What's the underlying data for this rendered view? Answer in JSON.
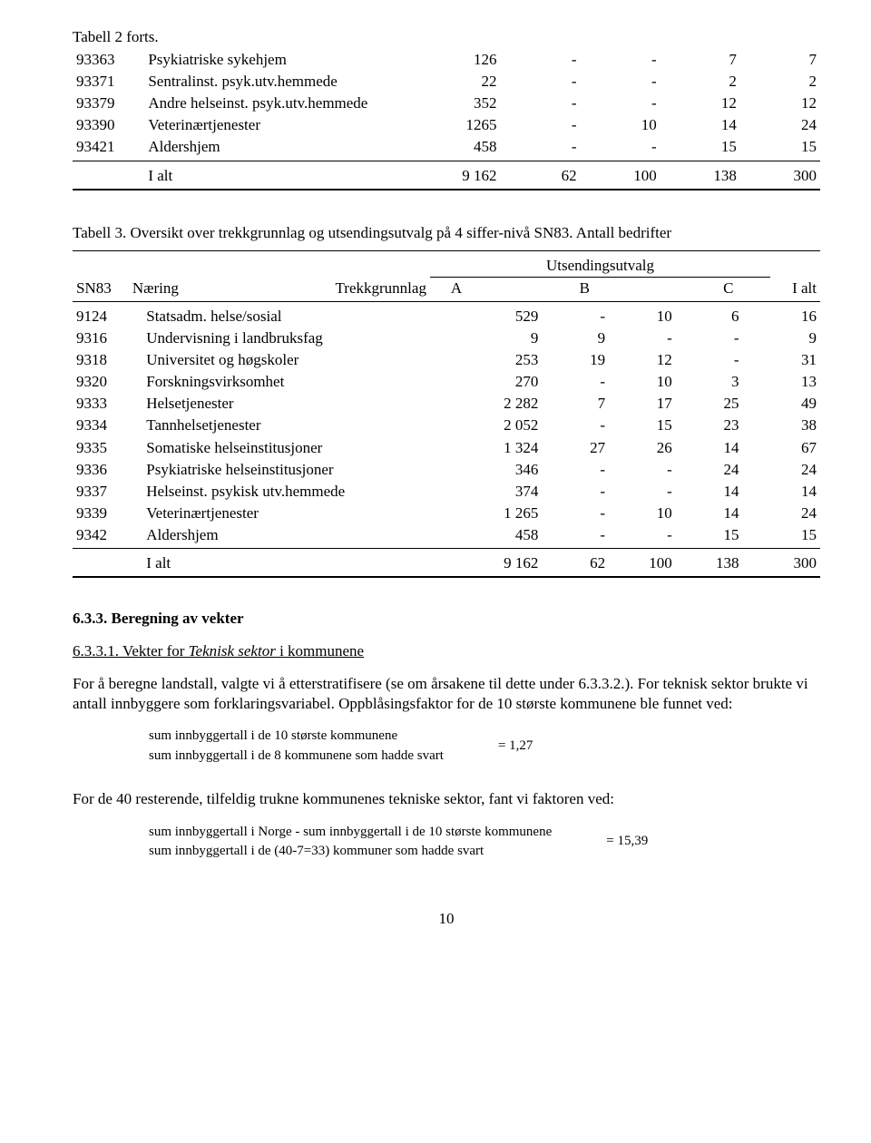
{
  "page": {
    "table1_forts_label": "Tabell 2 forts.",
    "page_number": "10"
  },
  "table1": {
    "rows": [
      {
        "code": "93363",
        "name": "Psykiatriske sykehjem",
        "c1": "126",
        "c2": "-",
        "c3": "-",
        "c4": "7",
        "c5": "7"
      },
      {
        "code": "93371",
        "name": "Sentralinst. psyk.utv.hemmede",
        "c1": "22",
        "c2": "-",
        "c3": "-",
        "c4": "2",
        "c5": "2"
      },
      {
        "code": "93379",
        "name": "Andre helseinst. psyk.utv.hemmede",
        "c1": "352",
        "c2": "-",
        "c3": "-",
        "c4": "12",
        "c5": "12"
      },
      {
        "code": "93390",
        "name": "Veterinærtjenester",
        "c1": "1265",
        "c2": "-",
        "c3": "10",
        "c4": "14",
        "c5": "24"
      },
      {
        "code": "93421",
        "name": "Aldershjem",
        "c1": "458",
        "c2": "-",
        "c3": "-",
        "c4": "15",
        "c5": "15"
      }
    ],
    "total": {
      "label": "I alt",
      "c1": "9 162",
      "c2": "62",
      "c3": "100",
      "c4": "138",
      "c5": "300"
    }
  },
  "table3_caption": "Tabell 3. Oversikt over trekkgrunnlag og utsendingsutvalg på 4 siffer-nivå SN83. Antall bedrifter",
  "table2": {
    "head": {
      "sn": "SN83",
      "naering": "Næring",
      "trekk": "Trekkgrunnlag",
      "uts": "Utsendingsutvalg",
      "A": "A",
      "B": "B",
      "C": "C",
      "ialt": "I alt"
    },
    "rows": [
      {
        "code": "9124",
        "name": "Statsadm. helse/sosial",
        "t": "529",
        "a": "-",
        "b": "10",
        "c": "6",
        "i": "16"
      },
      {
        "code": "9316",
        "name": "Undervisning i landbruksfag",
        "t": "9",
        "a": "9",
        "b": "-",
        "c": "-",
        "i": "9"
      },
      {
        "code": "9318",
        "name": "Universitet og høgskoler",
        "t": "253",
        "a": "19",
        "b": "12",
        "c": "-",
        "i": "31"
      },
      {
        "code": "9320",
        "name": "Forskningsvirksomhet",
        "t": "270",
        "a": "-",
        "b": "10",
        "c": "3",
        "i": "13"
      },
      {
        "code": "9333",
        "name": "Helsetjenester",
        "t": "2 282",
        "a": "7",
        "b": "17",
        "c": "25",
        "i": "49"
      },
      {
        "code": "9334",
        "name": "Tannhelsetjenester",
        "t": "2 052",
        "a": "-",
        "b": "15",
        "c": "23",
        "i": "38"
      },
      {
        "code": "9335",
        "name": "Somatiske helseinstitusjoner",
        "t": "1 324",
        "a": "27",
        "b": "26",
        "c": "14",
        "i": "67"
      },
      {
        "code": "9336",
        "name": "Psykiatriske helseinstitusjoner",
        "t": "346",
        "a": "-",
        "b": "-",
        "c": "24",
        "i": "24"
      },
      {
        "code": "9337",
        "name": "Helseinst. psykisk utv.hemmede",
        "t": "374",
        "a": "-",
        "b": "-",
        "c": "14",
        "i": "14"
      },
      {
        "code": "9339",
        "name": "Veterinærtjenester",
        "t": "1 265",
        "a": "-",
        "b": "10",
        "c": "14",
        "i": "24"
      },
      {
        "code": "9342",
        "name": "Aldershjem",
        "t": "458",
        "a": "-",
        "b": "-",
        "c": "15",
        "i": "15"
      }
    ],
    "total": {
      "label": "I alt",
      "t": "9 162",
      "a": "62",
      "b": "100",
      "c": "138",
      "i": "300"
    }
  },
  "section": {
    "title": "6.3.3. Beregning av vekter",
    "sub1_num": "6.3.3.1. ",
    "sub1_pre": "Vekter for ",
    "sub1_it": "Teknisk sektor",
    "sub1_post": " i kommunene",
    "para1": "For å beregne landstall, valgte vi å etterstratifisere (se om årsakene til dette under 6.3.3.2.). For teknisk sektor brukte vi antall innbyggere som forklaringsvariabel. Oppblåsingsfaktor for de 10 største kommunene ble funnet ved:",
    "frac1_top": "sum innbyggertall i de 10 største kommunene",
    "frac1_bot": "sum innbyggertall i de 8 kommunene som hadde svart",
    "frac1_val": "= 1,27",
    "para2": "For de 40 resterende, tilfeldig trukne kommunenes tekniske sektor, fant vi faktoren ved:",
    "frac2_top": "sum innbyggertall i Norge - sum innbyggertall i de 10 største kommunene",
    "frac2_bot": "sum innbyggertall i de (40-7=33) kommuner som hadde svart",
    "frac2_val": "= 15,39"
  }
}
